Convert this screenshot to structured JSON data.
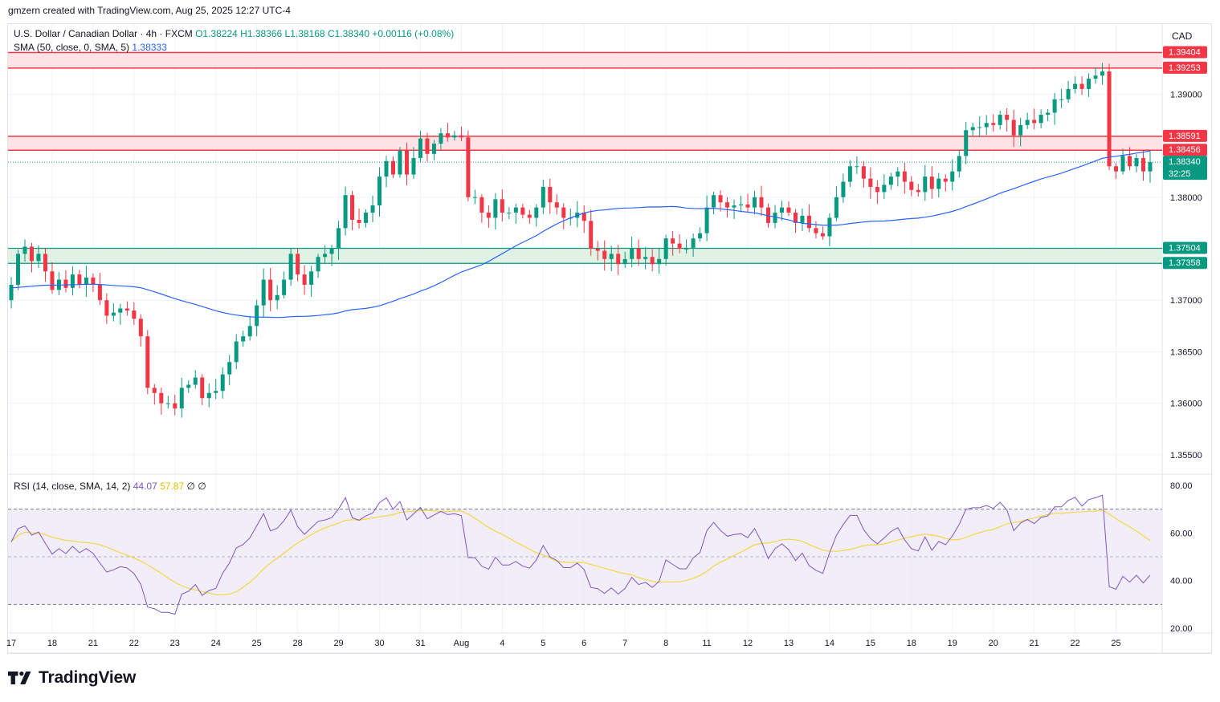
{
  "attribution": "gmzern created with TradingView.com, Aug 25, 2025 12:27 UTC-4",
  "currency": "CAD",
  "logo_text": "TradingView",
  "header": {
    "symbol": "U.S. Dollar / Canadian Dollar · 4h · FXCM",
    "open": "O1.38224",
    "high": "H1.38366",
    "low": "L1.38168",
    "close": "C1.38340",
    "change": "+0.00116 (+0.08%)"
  },
  "sma_legend": {
    "label": "SMA (50, close, 0, SMA, 5)",
    "value": "1.38333"
  },
  "rsi_legend": {
    "label": "RSI (14, close, SMA, 14, 2)",
    "rsi": "44.07",
    "rsi_ma": "57.87",
    "extra1": "∅",
    "extra2": "∅"
  },
  "price_tags": {
    "r_top1": "1.39404",
    "r_top2": "1.39253",
    "r_mid1": "1.38591",
    "r_mid2": "1.38456",
    "current": "1.38340",
    "countdown": "32:25",
    "s1": "1.37504",
    "s2": "1.37358"
  },
  "colors": {
    "up": "#089981",
    "down": "#f23645",
    "sma": "#2962ff",
    "rsi": "#7e57c2",
    "rsi_ma": "#f5d547",
    "resistance_zone": "#fde3e5",
    "support_zone": "#dff2e4"
  },
  "chart_data": [
    {
      "type": "candlestick",
      "title": "U.S. Dollar / Canadian Dollar · 4h · FXCM",
      "price_axis_ticks": [
        "1.39000",
        "1.38000",
        "1.37000",
        "1.36500",
        "1.36000",
        "1.35500"
      ],
      "price_axis_values": [
        1.39,
        1.38,
        1.37,
        1.365,
        1.36,
        1.355
      ],
      "ylim": [
        1.3532,
        1.3968
      ],
      "date_ticks": [
        "17",
        "18",
        "21",
        "22",
        "23",
        "24",
        "25",
        "28",
        "29",
        "30",
        "31",
        "Aug",
        "4",
        "5",
        "6",
        "7",
        "8",
        "11",
        "12",
        "13",
        "14",
        "15",
        "18",
        "19",
        "20",
        "21",
        "22",
        "25"
      ],
      "date_tick_index": [
        0,
        6,
        12,
        18,
        24,
        30,
        36,
        42,
        48,
        54,
        60,
        66,
        72,
        78,
        84,
        90,
        96,
        102,
        108,
        114,
        120,
        126,
        132,
        138,
        144,
        150,
        156,
        162
      ],
      "resistance_zones": [
        [
          1.39253,
          1.39404
        ],
        [
          1.38456,
          1.38591
        ]
      ],
      "support_zones": [
        [
          1.37358,
          1.37504
        ]
      ],
      "last_price": 1.3834,
      "close": [
        1.3715,
        1.3745,
        1.3752,
        1.3738,
        1.3745,
        1.3728,
        1.371,
        1.372,
        1.3712,
        1.3725,
        1.3715,
        1.3722,
        1.3715,
        1.37,
        1.3685,
        1.3688,
        1.3692,
        1.369,
        1.3682,
        1.3665,
        1.3615,
        1.361,
        1.36,
        1.36,
        1.3595,
        1.3615,
        1.3618,
        1.3625,
        1.3605,
        1.361,
        1.3612,
        1.3628,
        1.364,
        1.366,
        1.3665,
        1.3675,
        1.3695,
        1.372,
        1.37,
        1.3705,
        1.372,
        1.3745,
        1.3725,
        1.3715,
        1.3728,
        1.3742,
        1.3745,
        1.375,
        1.377,
        1.3802,
        1.3778,
        1.3775,
        1.3785,
        1.3792,
        1.382,
        1.3835,
        1.3822,
        1.3845,
        1.3822,
        1.3838,
        1.3857,
        1.3842,
        1.3852,
        1.3862,
        1.3858,
        1.386,
        1.3858,
        1.38,
        1.38,
        1.3785,
        1.378,
        1.3798,
        1.3785,
        1.3785,
        1.379,
        1.3783,
        1.378,
        1.379,
        1.381,
        1.3795,
        1.379,
        1.378,
        1.378,
        1.3785,
        1.3777,
        1.375,
        1.3748,
        1.374,
        1.3745,
        1.3735,
        1.374,
        1.375,
        1.374,
        1.3742,
        1.3735,
        1.374,
        1.376,
        1.3755,
        1.375,
        1.375,
        1.376,
        1.3765,
        1.379,
        1.3802,
        1.3795,
        1.379,
        1.3792,
        1.3793,
        1.379,
        1.38,
        1.379,
        1.3775,
        1.3785,
        1.379,
        1.3785,
        1.3775,
        1.3782,
        1.377,
        1.3765,
        1.3762,
        1.378,
        1.38,
        1.3815,
        1.383,
        1.383,
        1.3818,
        1.381,
        1.3805,
        1.3812,
        1.382,
        1.3825,
        1.3815,
        1.3807,
        1.3805,
        1.382,
        1.3808,
        1.3818,
        1.3815,
        1.3825,
        1.384,
        1.3865,
        1.3868,
        1.3868,
        1.3872,
        1.387,
        1.388,
        1.3875,
        1.386,
        1.387,
        1.3875,
        1.3872,
        1.388,
        1.3882,
        1.3895,
        1.3895,
        1.3905,
        1.391,
        1.3905,
        1.3915,
        1.3918,
        1.3922,
        1.383,
        1.3825,
        1.384,
        1.383,
        1.3838,
        1.3825,
        1.3834
      ]
    },
    {
      "type": "line",
      "title": "RSI (14, close, SMA, 14, 2)",
      "series_names": [
        "RSI",
        "RSI-based MA"
      ],
      "axis_ticks": [
        "80.00",
        "60.00",
        "40.00",
        "20.00"
      ],
      "axis_values": [
        80,
        60,
        40,
        20
      ],
      "ylim": [
        18,
        84
      ],
      "bands": [
        30,
        50,
        70
      ]
    }
  ]
}
